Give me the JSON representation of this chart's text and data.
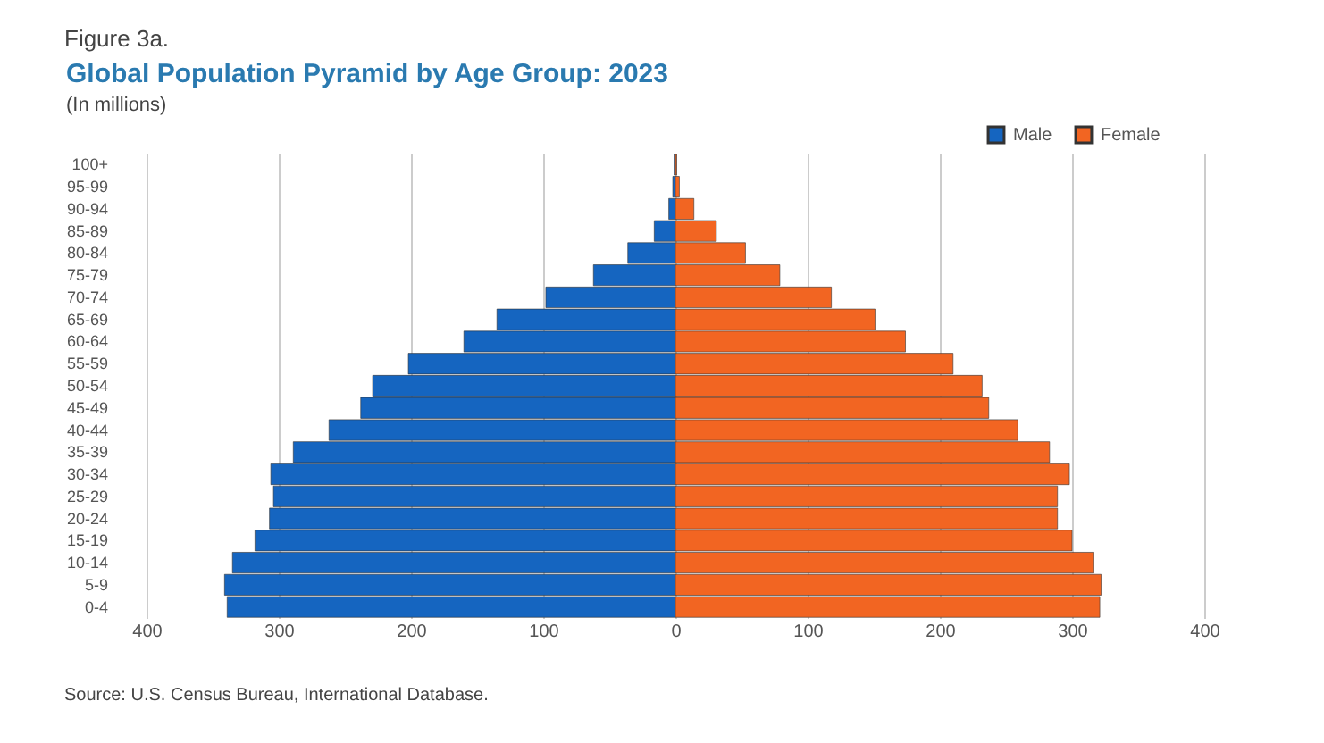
{
  "chart_data": {
    "type": "bar",
    "orientation": "horizontal",
    "stacked": true,
    "title": "Global Population Pyramid by Age Group: 2023",
    "subtitle": "(In millions)",
    "annotations": [
      "Figure 3a.",
      "Source: U.S. Census Bureau, International Database."
    ],
    "categories": [
      "100+",
      "95-99",
      "90-94",
      "85-89",
      "80-84",
      "75-79",
      "70-74",
      "65-69",
      "60-64",
      "55-59",
      "50-54",
      "45-49",
      "40-44",
      "35-39",
      "30-34",
      "25-29",
      "20-24",
      "15-19",
      "10-14",
      "5-9",
      "0-4"
    ],
    "series": [
      {
        "name": "Male",
        "color": "#1565c0",
        "values": [
          -1,
          -2,
          -5,
          -16,
          -36,
          -62,
          -98,
          -135,
          -160,
          -202,
          -229,
          -238,
          -262,
          -289,
          -306,
          -304,
          -307,
          -318,
          -335,
          -341,
          -339
        ]
      },
      {
        "name": "Female",
        "color": "#f26522",
        "values": [
          1,
          3,
          14,
          31,
          53,
          79,
          118,
          151,
          174,
          210,
          232,
          237,
          259,
          283,
          298,
          289,
          289,
          300,
          316,
          322,
          321
        ]
      }
    ],
    "xlim": [
      -400,
      400
    ],
    "xticks": [
      {
        "value": -400,
        "label": "400"
      },
      {
        "value": -300,
        "label": "300"
      },
      {
        "value": -200,
        "label": "200"
      },
      {
        "value": -100,
        "label": "100"
      },
      0,
      100,
      200,
      300,
      400
    ],
    "grid": "x",
    "legend": "top right"
  }
}
